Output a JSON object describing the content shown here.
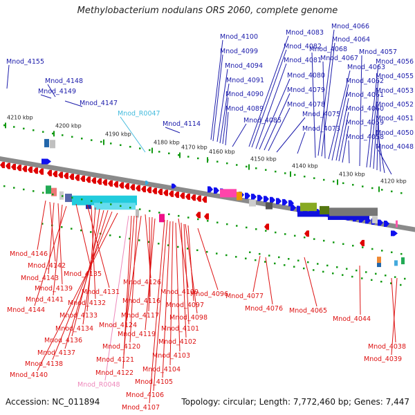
{
  "title": "Methylobacterium nodulans ORS 2060, complete genome",
  "accession": "Accession: NC_011894",
  "summary": "Topology: circular; Length: 7,772,460 bp; Genes: 7,447",
  "colors": {
    "forward_label": "#1a1aaa",
    "reverse_label": "#dd1111",
    "rna_forward_label": "#44bbdd",
    "rna_reverse_label": "#ee88bb",
    "backbone": "#8a8a8a",
    "tick": "#119911"
  },
  "kbp_labels": [
    "4210 kbp",
    "4200 kbp",
    "4190 kbp",
    "4180 kbp",
    "4170 kbp",
    "4160 kbp",
    "4150 kbp",
    "4140 kbp",
    "4130 kbp",
    "4120 kbp"
  ],
  "top_labels": [
    "Mnod_4155",
    "Mnod_4148",
    "Mnod_4149",
    "Mnod_4147",
    "Mnod_R0047",
    "Mnod_4114",
    "Mnod_4100",
    "Mnod_4099",
    "Mnod_4094",
    "Mnod_4091",
    "Mnod_4090",
    "Mnod_4089",
    "Mnod_4085",
    "Mnod_4083",
    "Mnod_4082",
    "Mnod_4081",
    "Mnod_4080",
    "Mnod_4079",
    "Mnod_4078",
    "Mnod_4075",
    "Mnod_4073",
    "Mnod_4066",
    "Mnod_4064",
    "Mnod_4068",
    "Mnod_4067",
    "Mnod_4063",
    "Mnod_4062",
    "Mnod_4061",
    "Mnod_4060",
    "Mnod_4059",
    "Mnod_4058",
    "Mnod_4057",
    "Mnod_4056",
    "Mnod_4055",
    "Mnod_4053",
    "Mnod_4052",
    "Mnod_4051",
    "Mnod_4050",
    "Mnod_4048"
  ],
  "bottom_labels": [
    "Mnod_4146",
    "Mnod_4142",
    "Mnod_4143",
    "Mnod_4135",
    "Mnod_4139",
    "Mnod_4131",
    "Mnod_4141",
    "Mnod_4132",
    "Mnod_4144",
    "Mnod_4133",
    "Mnod_4134",
    "Mnod_4136",
    "Mnod_4137",
    "Mnod_4138",
    "Mnod_4140",
    "Mnod_4126",
    "Mnod_4109",
    "Mnod_4116",
    "Mnod_4117",
    "Mnod_4124",
    "Mnod_4119",
    "Mnod_4120",
    "Mnod_4121",
    "Mnod_4122",
    "Mnod_R0048",
    "Mnod_4096",
    "Mnod_4097",
    "Mnod_4098",
    "Mnod_4101",
    "Mnod_4102",
    "Mnod_4103",
    "Mnod_4104",
    "Mnod_4105",
    "Mnod_4106",
    "Mnod_4107",
    "Mnod_4077",
    "Mnod_4076",
    "Mnod_4065",
    "Mnod_4044",
    "Mnod_4038",
    "Mnod_4039"
  ]
}
